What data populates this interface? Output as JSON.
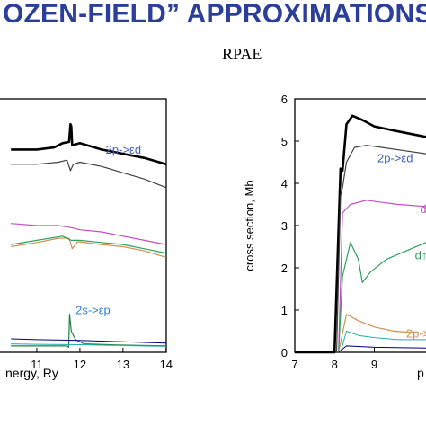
{
  "banner": {
    "title": "OZEN-FIELD” APPROXIMATIONS."
  },
  "chart_data": [
    {
      "type": "line",
      "xlabel": "Photon energy, Ry",
      "xlabel_visible": "nergy, Ry",
      "xlim": [
        10.4,
        14
      ],
      "ylim": [
        0,
        6
      ],
      "x_ticks": [
        11,
        12,
        13,
        14
      ],
      "annotations": [
        {
          "text": "2p->εd",
          "x": 12.6,
          "y": 4.7,
          "color": "#4060c0"
        },
        {
          "text": "2s->εp",
          "x": 11.9,
          "y": 0.9,
          "color": "#3080d0"
        }
      ],
      "series": [
        {
          "color": "#000000",
          "width": 2.6,
          "points": [
            [
              10.4,
              4.8
            ],
            [
              11,
              4.8
            ],
            [
              11.4,
              4.85
            ],
            [
              11.6,
              4.95
            ],
            [
              11.75,
              4.98
            ],
            [
              11.78,
              5.4
            ],
            [
              11.8,
              5.35
            ],
            [
              11.82,
              4.9
            ],
            [
              12,
              4.95
            ],
            [
              12.5,
              4.8
            ],
            [
              13,
              4.7
            ],
            [
              13.5,
              4.6
            ],
            [
              14,
              4.45
            ]
          ]
        },
        {
          "color": "#404040",
          "width": 1.2,
          "points": [
            [
              10.4,
              4.45
            ],
            [
              11,
              4.45
            ],
            [
              11.5,
              4.5
            ],
            [
              11.7,
              4.55
            ],
            [
              11.78,
              4.3
            ],
            [
              11.85,
              4.45
            ],
            [
              12,
              4.5
            ],
            [
              12.5,
              4.4
            ],
            [
              13,
              4.25
            ],
            [
              13.5,
              4.1
            ],
            [
              14,
              3.9
            ]
          ]
        },
        {
          "color": "#c050c0",
          "width": 1.2,
          "points": [
            [
              10.4,
              3.05
            ],
            [
              11,
              3.0
            ],
            [
              11.5,
              3.0
            ],
            [
              11.8,
              2.95
            ],
            [
              12,
              2.9
            ],
            [
              12.5,
              2.85
            ],
            [
              13,
              2.75
            ],
            [
              13.5,
              2.65
            ],
            [
              14,
              2.55
            ]
          ]
        },
        {
          "color": "#d09050",
          "width": 1.2,
          "points": [
            [
              10.4,
              2.5
            ],
            [
              11,
              2.6
            ],
            [
              11.5,
              2.7
            ],
            [
              11.75,
              2.7
            ],
            [
              11.82,
              2.45
            ],
            [
              11.95,
              2.62
            ],
            [
              12.5,
              2.55
            ],
            [
              13,
              2.5
            ],
            [
              13.5,
              2.4
            ],
            [
              14,
              2.25
            ]
          ]
        },
        {
          "color": "#30a060",
          "width": 1.2,
          "points": [
            [
              10.4,
              2.55
            ],
            [
              11,
              2.65
            ],
            [
              11.6,
              2.75
            ],
            [
              11.8,
              2.65
            ],
            [
              12,
              2.65
            ],
            [
              12.5,
              2.6
            ],
            [
              13,
              2.55
            ],
            [
              13.5,
              2.45
            ],
            [
              14,
              2.35
            ]
          ]
        },
        {
          "color": "#208040",
          "width": 1.2,
          "points": [
            [
              10.4,
              0.15
            ],
            [
              11.7,
              0.15
            ],
            [
              11.74,
              0.12
            ],
            [
              11.76,
              0.9
            ],
            [
              11.8,
              0.5
            ],
            [
              11.9,
              0.3
            ],
            [
              12.1,
              0.2
            ],
            [
              13,
              0.17
            ],
            [
              14,
              0.15
            ]
          ]
        },
        {
          "color": "#000080",
          "width": 1.0,
          "points": [
            [
              10.4,
              0.32
            ],
            [
              11,
              0.3
            ],
            [
              12,
              0.28
            ],
            [
              13,
              0.25
            ],
            [
              14,
              0.22
            ]
          ]
        },
        {
          "color": "#20b0b0",
          "width": 1.0,
          "points": [
            [
              10.4,
              0.2
            ],
            [
              11,
              0.19
            ],
            [
              12,
              0.18
            ],
            [
              13,
              0.16
            ],
            [
              14,
              0.14
            ]
          ]
        }
      ]
    },
    {
      "type": "line",
      "title": "RPAE",
      "ylabel": "cross section, Mb",
      "xlabel": "p",
      "xlim": [
        7,
        10.3
      ],
      "ylim": [
        0,
        6
      ],
      "x_ticks": [
        7,
        8,
        9
      ],
      "y_ticks": [
        0,
        1,
        2,
        3,
        4,
        5,
        6
      ],
      "annotations": [
        {
          "text": "2p->εd",
          "x": 9.08,
          "y": 4.5,
          "color": "#4060c0"
        },
        {
          "text": "d",
          "x": 10.15,
          "y": 3.3,
          "color": "#c050c0"
        },
        {
          "text": "d↑",
          "x": 10.02,
          "y": 2.2,
          "color": "#30a060"
        },
        {
          "text": "2p->ε",
          "x": 9.8,
          "y": 0.35,
          "color": "#d09050"
        }
      ],
      "series": [
        {
          "color": "#000000",
          "width": 2.6,
          "points": [
            [
              7,
              0
            ],
            [
              8.0,
              0
            ],
            [
              8.15,
              4.35
            ],
            [
              8.2,
              4.3
            ],
            [
              8.3,
              5.4
            ],
            [
              8.45,
              5.6
            ],
            [
              8.7,
              5.5
            ],
            [
              9.0,
              5.35
            ],
            [
              9.5,
              5.25
            ],
            [
              10.3,
              5.1
            ]
          ]
        },
        {
          "color": "#404040",
          "width": 1.2,
          "points": [
            [
              8.05,
              0
            ],
            [
              8.15,
              3.7
            ],
            [
              8.2,
              3.9
            ],
            [
              8.3,
              4.5
            ],
            [
              8.5,
              4.85
            ],
            [
              8.8,
              4.9
            ],
            [
              9.2,
              4.85
            ],
            [
              9.7,
              4.78
            ],
            [
              10.3,
              4.7
            ]
          ]
        },
        {
          "color": "#c050c0",
          "width": 1.2,
          "points": [
            [
              8.1,
              0
            ],
            [
              8.2,
              3.3
            ],
            [
              8.4,
              3.5
            ],
            [
              8.8,
              3.6
            ],
            [
              9.2,
              3.55
            ],
            [
              9.6,
              3.5
            ],
            [
              10.3,
              3.45
            ]
          ]
        },
        {
          "color": "#30a060",
          "width": 1.2,
          "points": [
            [
              8.1,
              0
            ],
            [
              8.2,
              1.8
            ],
            [
              8.4,
              2.6
            ],
            [
              8.6,
              2.2
            ],
            [
              8.7,
              1.65
            ],
            [
              8.9,
              1.9
            ],
            [
              9.3,
              2.2
            ],
            [
              9.8,
              2.4
            ],
            [
              10.3,
              2.6
            ]
          ]
        },
        {
          "color": "#d09050",
          "width": 1.2,
          "points": [
            [
              8.1,
              0
            ],
            [
              8.3,
              0.9
            ],
            [
              8.6,
              0.75
            ],
            [
              9,
              0.6
            ],
            [
              9.5,
              0.5
            ],
            [
              10.3,
              0.45
            ]
          ]
        },
        {
          "color": "#20b0b0",
          "width": 1.0,
          "points": [
            [
              8.15,
              0
            ],
            [
              8.3,
              0.5
            ],
            [
              8.6,
              0.4
            ],
            [
              9,
              0.35
            ],
            [
              9.6,
              0.3
            ],
            [
              10.3,
              0.3
            ]
          ]
        },
        {
          "color": "#000080",
          "width": 1.0,
          "points": [
            [
              8.1,
              0
            ],
            [
              8.3,
              0.15
            ],
            [
              9,
              0.12
            ],
            [
              10.3,
              0.1
            ]
          ]
        }
      ]
    }
  ]
}
